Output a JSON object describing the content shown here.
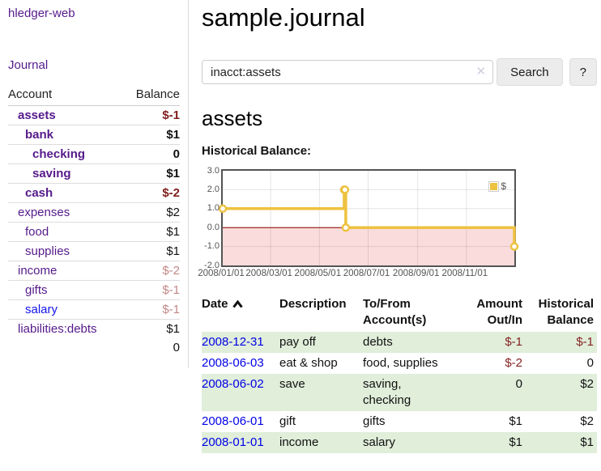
{
  "app": {
    "brand": "hledger-web",
    "nav_journal": "Journal"
  },
  "sidebar": {
    "header": {
      "account": "Account",
      "balance": "Balance"
    },
    "accounts": [
      {
        "name": "assets",
        "balance": "$-1",
        "level": 1,
        "bold": true,
        "neg": "strong"
      },
      {
        "name": "bank",
        "balance": "$1",
        "level": 2,
        "bold": true,
        "neg": "none"
      },
      {
        "name": "checking",
        "balance": "0",
        "level": 3,
        "bold": true,
        "neg": "none"
      },
      {
        "name": "saving",
        "balance": "$1",
        "level": 3,
        "bold": true,
        "neg": "none"
      },
      {
        "name": "cash",
        "balance": "$-2",
        "level": 2,
        "bold": true,
        "neg": "strong"
      },
      {
        "name": "expenses",
        "balance": "$2",
        "level": 1,
        "bold": false,
        "neg": "none"
      },
      {
        "name": "food",
        "balance": "$1",
        "level": 2,
        "bold": false,
        "neg": "none"
      },
      {
        "name": "supplies",
        "balance": "$1",
        "level": 2,
        "bold": false,
        "neg": "none"
      },
      {
        "name": "income",
        "balance": "$-2",
        "level": 1,
        "bold": false,
        "neg": "soft"
      },
      {
        "name": "gifts",
        "balance": "$-1",
        "level": 2,
        "bold": false,
        "neg": "soft"
      },
      {
        "name": "salary",
        "balance": "$-1",
        "level": 2,
        "bold": false,
        "neg": "soft",
        "unvisited": true
      },
      {
        "name": "liabilities:debts",
        "balance": "$1",
        "level": 1,
        "bold": false,
        "neg": "none"
      }
    ],
    "total": "0"
  },
  "header": {
    "title": "sample.journal"
  },
  "search": {
    "value": "inacct:assets",
    "clear_icon": "✕",
    "button": "Search",
    "help_button": "?"
  },
  "account_page": {
    "title": "assets",
    "chart_label": "Historical Balance:"
  },
  "chart_data": {
    "type": "line",
    "title": "Historical Balance:",
    "steps": true,
    "series": [
      {
        "name": "$",
        "color": "#edc240",
        "points": [
          [
            "2008-01-01",
            1
          ],
          [
            "2008-06-01",
            2
          ],
          [
            "2008-06-02",
            2
          ],
          [
            "2008-06-03",
            0
          ],
          [
            "2008-12-31",
            -1
          ]
        ]
      }
    ],
    "xlim": [
      "2008-01-01",
      "2008-12-31"
    ],
    "ylim": [
      -2,
      3
    ],
    "y_ticks": [
      "3.0",
      "2.0",
      "1.0",
      "0.0",
      "-1.0",
      "-2.0"
    ],
    "x_ticks": [
      "2008/01/01",
      "2008/03/01",
      "2008/05/01",
      "2008/07/01",
      "2008/09/01",
      "2008/11/01"
    ],
    "grid": true,
    "negative_region_color": "#fbdcdc",
    "zero_line_color": "#8b0000",
    "legend": {
      "position": "top-right",
      "entries": [
        {
          "label": "$",
          "color": "#edc240"
        }
      ]
    }
  },
  "register": {
    "columns": [
      {
        "label": "Date",
        "sorted": "asc"
      },
      {
        "label": "Description"
      },
      {
        "label": "To/From Account(s)"
      },
      {
        "label": "Amount Out/In"
      },
      {
        "label": "Historical Balance"
      }
    ],
    "rows": [
      {
        "date": "2008-12-31",
        "description": "pay off",
        "accounts": "debts",
        "amount": "$-1",
        "balance": "$-1",
        "amount_neg": true,
        "balance_neg": true
      },
      {
        "date": "2008-06-03",
        "description": "eat & shop",
        "accounts": "food, supplies",
        "amount": "$-2",
        "balance": "0",
        "amount_neg": true,
        "balance_neg": false
      },
      {
        "date": "2008-06-02",
        "description": "save",
        "accounts": "saving, checking",
        "amount": "0",
        "balance": "$2",
        "amount_neg": false,
        "balance_neg": false
      },
      {
        "date": "2008-06-01",
        "description": "gift",
        "accounts": "gifts",
        "amount": "$1",
        "balance": "$2",
        "amount_neg": false,
        "balance_neg": false
      },
      {
        "date": "2008-01-01",
        "description": "income",
        "accounts": "salary",
        "amount": "$1",
        "balance": "$1",
        "amount_neg": false,
        "balance_neg": false
      }
    ]
  }
}
